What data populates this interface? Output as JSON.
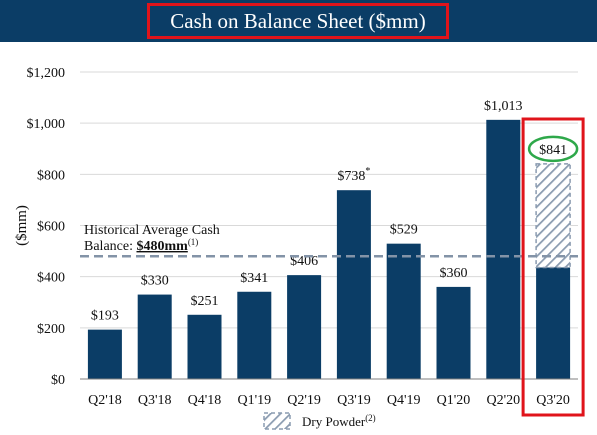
{
  "chart_data": {
    "type": "bar",
    "title": "Cash on Balance Sheet ($mm)",
    "ylabel": "($mm)",
    "ylim": [
      0,
      1200
    ],
    "yticks": [
      0,
      200,
      400,
      600,
      800,
      1000,
      1200
    ],
    "ytick_labels": [
      "$0",
      "$200",
      "$400",
      "$600",
      "$800",
      "$1,000",
      "$1,200"
    ],
    "grid": true,
    "categories": [
      "Q2'18",
      "Q3'18",
      "Q4'18",
      "Q1'19",
      "Q2'19",
      "Q3'19",
      "Q4'19",
      "Q1'20",
      "Q2'20",
      "Q3'20"
    ],
    "series": [
      {
        "values": [
          193,
          330,
          251,
          341,
          406,
          738,
          529,
          360,
          1013,
          436
        ]
      },
      {
        "name": "Dry Powder",
        "values": [
          0,
          0,
          0,
          0,
          0,
          0,
          0,
          0,
          0,
          405
        ]
      }
    ],
    "data_labels": [
      "$193",
      "$330",
      "$251",
      "$341",
      "$406",
      "$738",
      "$529",
      "$360",
      "$1,013",
      "$841"
    ],
    "label_footnotes": [
      "",
      "",
      "",
      "",
      "",
      "*",
      "",
      "",
      "",
      ""
    ],
    "reference_line": {
      "value": 480,
      "label_line1": "Historical Average Cash",
      "label_prefix": "Balance: ",
      "label_value": "$480mm",
      "label_footnote": "(1)"
    },
    "legend": {
      "label": "Dry Powder",
      "footnote": "(2)",
      "position": "bottom"
    },
    "highlight": {
      "category": "Q3'20"
    },
    "colors": {
      "bar": "#0b3d66",
      "banner": "#0b3d66",
      "highlight_box": "#e0141b",
      "highlight_ellipse": "#2ea84a",
      "reference_line": "#8393a7",
      "hatch": "#8a9bb0",
      "gridline": "#d9d9d9"
    }
  }
}
